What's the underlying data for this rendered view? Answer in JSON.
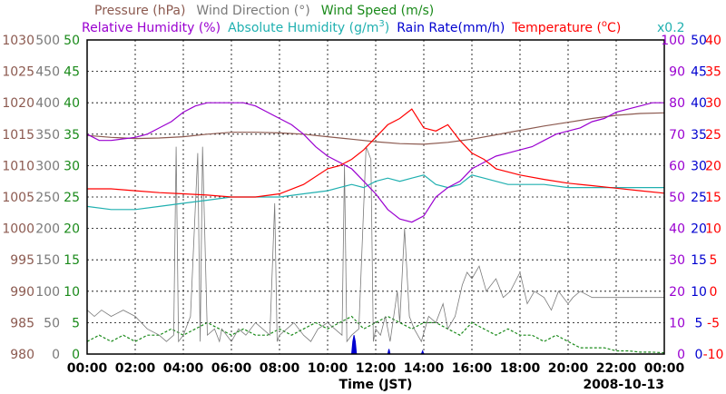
{
  "chart_data": {
    "type": "line",
    "legend": {
      "row1": [
        {
          "label": "Pressure (hPa)",
          "color": "#8c5a50"
        },
        {
          "label": "Wind Direction (°)",
          "color": "#7a7a7a"
        },
        {
          "label": "Wind Speed (m/s)",
          "color": "#1a8a1a"
        }
      ],
      "row2": [
        {
          "label": "Relative Humidity (%)",
          "color": "#9a00d0"
        },
        {
          "label": "Absolute Humidity (g/m",
          "sup": "3",
          "after": ")",
          "color": "#20b0b0"
        },
        {
          "label": "Rain Rate(mm/h)",
          "color": "#0000d0"
        },
        {
          "label": "Temperature (",
          "sup": "o",
          "after": "C)",
          "color": "#ff0000"
        }
      ],
      "scale_note": {
        "label": "x0.2",
        "color": "#20b0b0"
      }
    },
    "xlabel": "Time (JST)",
    "date": "2008-10-13",
    "x_ticks": [
      "00:00",
      "02:00",
      "04:00",
      "06:00",
      "08:00",
      "10:00",
      "12:00",
      "14:00",
      "16:00",
      "18:00",
      "20:00",
      "22:00",
      "00:00"
    ],
    "xlim_hours": [
      0,
      24
    ],
    "y_axes": {
      "pressure": {
        "color": "#8c5a50",
        "ticks": [
          "980",
          "985",
          "990",
          "995",
          "1000",
          "1005",
          "1010",
          "1015",
          "1020",
          "1025",
          "1030"
        ],
        "range": [
          980,
          1030
        ]
      },
      "wind_direction": {
        "color": "#7a7a7a",
        "ticks": [
          "0",
          "50",
          "100",
          "150",
          "200",
          "250",
          "300",
          "350",
          "400",
          "450",
          "500"
        ],
        "range": [
          0,
          500
        ]
      },
      "wind_speed": {
        "color": "#1a8a1a",
        "ticks": [
          "0",
          "5",
          "10",
          "15",
          "20",
          "25",
          "30",
          "35",
          "40",
          "45",
          "50"
        ],
        "range": [
          0,
          50
        ]
      },
      "relative_humidity": {
        "color": "#9a00d0",
        "ticks": [
          "0",
          "10",
          "20",
          "30",
          "40",
          "50",
          "60",
          "70",
          "80",
          "90",
          "100"
        ],
        "range": [
          0,
          100
        ]
      },
      "rain_rate": {
        "color": "#0000d0",
        "ticks": [
          "0",
          "5",
          "10",
          "15",
          "20",
          "25",
          "30",
          "35",
          "40",
          "45",
          "50"
        ],
        "range": [
          0,
          50
        ]
      },
      "temperature": {
        "color": "#ff0000",
        "ticks": [
          "-10",
          "-5",
          "0",
          "5",
          "10",
          "15",
          "20",
          "25",
          "30",
          "35",
          "40"
        ],
        "range": [
          -10,
          40
        ]
      }
    },
    "grid": true,
    "series": [
      {
        "name": "Pressure (hPa)",
        "axis": "pressure",
        "color": "#8c5a50",
        "x": [
          0,
          1,
          2,
          3,
          4,
          5,
          6,
          7,
          8,
          9,
          10,
          11,
          12,
          13,
          14,
          15,
          16,
          17,
          18,
          19,
          20,
          21,
          22,
          23,
          24
        ],
        "y": [
          1014.8,
          1014.5,
          1014.3,
          1014.4,
          1014.6,
          1015.0,
          1015.3,
          1015.3,
          1015.2,
          1015.0,
          1014.6,
          1014.2,
          1013.8,
          1013.5,
          1013.4,
          1013.7,
          1014.2,
          1014.9,
          1015.6,
          1016.3,
          1016.9,
          1017.5,
          1018.0,
          1018.3,
          1018.4
        ]
      },
      {
        "name": "Relative Humidity (%)",
        "axis": "relative_humidity",
        "color": "#9a00d0",
        "x": [
          0,
          0.5,
          1,
          2,
          2.5,
          3,
          3.5,
          4,
          4.5,
          5,
          5.5,
          6,
          6.5,
          7,
          7.5,
          8,
          8.5,
          9,
          9.5,
          10,
          10.5,
          11,
          11.5,
          12,
          12.5,
          13,
          13.5,
          14,
          14.5,
          15,
          15.5,
          16,
          16.5,
          17,
          17.5,
          18,
          18.5,
          19,
          19.5,
          20,
          20.5,
          21,
          21.5,
          22,
          22.5,
          23,
          23.5,
          24
        ],
        "y": [
          70,
          68,
          68,
          69,
          70,
          72,
          74,
          77,
          79,
          80,
          80,
          80,
          80,
          79,
          77,
          75,
          73,
          70,
          66,
          63,
          61,
          59,
          55,
          51,
          46,
          43,
          42,
          44,
          50,
          53,
          55,
          59,
          61,
          63,
          64,
          65,
          66,
          68,
          70,
          71,
          72,
          74,
          75,
          77,
          78,
          79,
          80,
          80
        ]
      },
      {
        "name": "Absolute Humidity (g/m3)",
        "axis": "relative_humidity",
        "color": "#20b0b0",
        "x": [
          0,
          1,
          2,
          3,
          4,
          5,
          6,
          7,
          8,
          9,
          10,
          10.5,
          11,
          11.5,
          12,
          12.5,
          13,
          13.5,
          14,
          14.5,
          15,
          15.5,
          16,
          16.5,
          17,
          17.5,
          18,
          19,
          20,
          21,
          22,
          23,
          24
        ],
        "y": [
          47,
          46,
          46,
          47,
          48,
          49,
          50,
          50,
          50,
          51,
          52,
          53,
          54,
          53,
          55,
          56,
          55,
          56,
          57,
          54,
          53,
          54,
          57,
          56,
          55,
          54,
          54,
          54,
          53,
          53,
          53,
          53,
          53
        ]
      },
      {
        "name": "Temperature (oC)",
        "axis": "temperature",
        "color": "#ff0000",
        "x": [
          0,
          1,
          2,
          3,
          4,
          5,
          6,
          7,
          8,
          9,
          10,
          10.5,
          11,
          11.5,
          12,
          12.5,
          13,
          13.5,
          14,
          14.5,
          15,
          15.5,
          16,
          16.5,
          17,
          18,
          19,
          20,
          21,
          22,
          23,
          24
        ],
        "y": [
          16.3,
          16.3,
          16.0,
          15.7,
          15.5,
          15.3,
          15.0,
          15.0,
          15.5,
          17.0,
          19.5,
          20.0,
          21.0,
          22.5,
          24.5,
          26.5,
          27.5,
          29.0,
          26.0,
          25.5,
          26.5,
          24.0,
          22.0,
          21.0,
          19.5,
          18.5,
          17.8,
          17.2,
          16.8,
          16.4,
          16.0,
          15.6
        ]
      },
      {
        "name": "Wind Direction (°)",
        "axis": "wind_direction",
        "color": "#7a7a7a",
        "x": [
          0,
          0.3,
          0.6,
          1,
          1.5,
          2,
          2.5,
          3,
          3.3,
          3.6,
          3.7,
          3.8,
          4.0,
          4.3,
          4.6,
          4.7,
          4.8,
          5.0,
          5.3,
          5.5,
          5.6,
          5.8,
          6.0,
          6.3,
          6.6,
          7.0,
          7.3,
          7.6,
          7.8,
          7.9,
          8.0,
          8.3,
          8.6,
          9.0,
          9.3,
          9.6,
          10.0,
          10.3,
          10.6,
          10.7,
          10.8,
          11.0,
          11.3,
          11.6,
          11.8,
          11.9,
          12.0,
          12.2,
          12.4,
          12.6,
          12.9,
          13.0,
          13.2,
          13.4,
          13.6,
          13.9,
          14.2,
          14.5,
          14.8,
          15.0,
          15.3,
          15.6,
          15.8,
          16.0,
          16.3,
          16.6,
          17.0,
          17.3,
          17.6,
          18.0,
          18.3,
          18.6,
          19.0,
          19.3,
          19.6,
          20.0,
          20.2,
          20.5,
          21.0,
          22.0,
          23.0,
          24.0
        ],
        "y": [
          70,
          60,
          70,
          60,
          70,
          60,
          40,
          30,
          20,
          30,
          330,
          20,
          30,
          60,
          320,
          20,
          330,
          30,
          40,
          20,
          40,
          30,
          20,
          40,
          30,
          50,
          40,
          30,
          240,
          20,
          30,
          40,
          50,
          30,
          20,
          40,
          50,
          40,
          30,
          300,
          20,
          30,
          40,
          330,
          310,
          20,
          40,
          30,
          60,
          20,
          100,
          50,
          200,
          60,
          40,
          20,
          60,
          50,
          80,
          40,
          60,
          110,
          130,
          120,
          140,
          100,
          120,
          90,
          100,
          130,
          80,
          100,
          90,
          70,
          100,
          80,
          90,
          100,
          90,
          90,
          90,
          90
        ]
      },
      {
        "name": "Wind Speed (m/s)",
        "axis": "wind_speed",
        "color": "#1a8a1a",
        "x": [
          0,
          0.5,
          1,
          1.5,
          2,
          2.5,
          3,
          3.5,
          4,
          4.5,
          5,
          5.5,
          6,
          6.5,
          7,
          7.5,
          8,
          8.5,
          9,
          9.5,
          10,
          10.5,
          11,
          11.5,
          12,
          12.5,
          13,
          13.5,
          14,
          14.5,
          15,
          15.5,
          16,
          16.5,
          17,
          17.5,
          18,
          18.5,
          19,
          19.5,
          20,
          20.5,
          21,
          21.5,
          22,
          22.5,
          23,
          23.5,
          24
        ],
        "y": [
          2,
          3,
          2,
          3,
          2,
          3,
          3,
          4,
          3,
          4,
          5,
          4,
          3,
          4,
          3,
          3,
          4,
          3,
          4,
          5,
          4,
          5,
          6,
          4,
          5,
          6,
          5,
          4,
          5,
          5,
          4,
          3,
          5,
          4,
          3,
          4,
          3,
          3,
          2,
          3,
          2,
          1,
          1,
          1,
          0.5,
          0.5,
          0.3,
          0.3,
          0.2
        ]
      },
      {
        "name": "Rain Rate(mm/h)",
        "axis": "rain_rate",
        "color": "#0000d0",
        "x": [
          11.0,
          11.05,
          11.1,
          11.15,
          11.2,
          12.5,
          12.55,
          12.6,
          13.9,
          13.95,
          14.0
        ],
        "y": [
          0,
          2,
          3,
          2,
          0,
          0,
          0.8,
          0,
          0,
          0.5,
          0
        ]
      }
    ]
  }
}
